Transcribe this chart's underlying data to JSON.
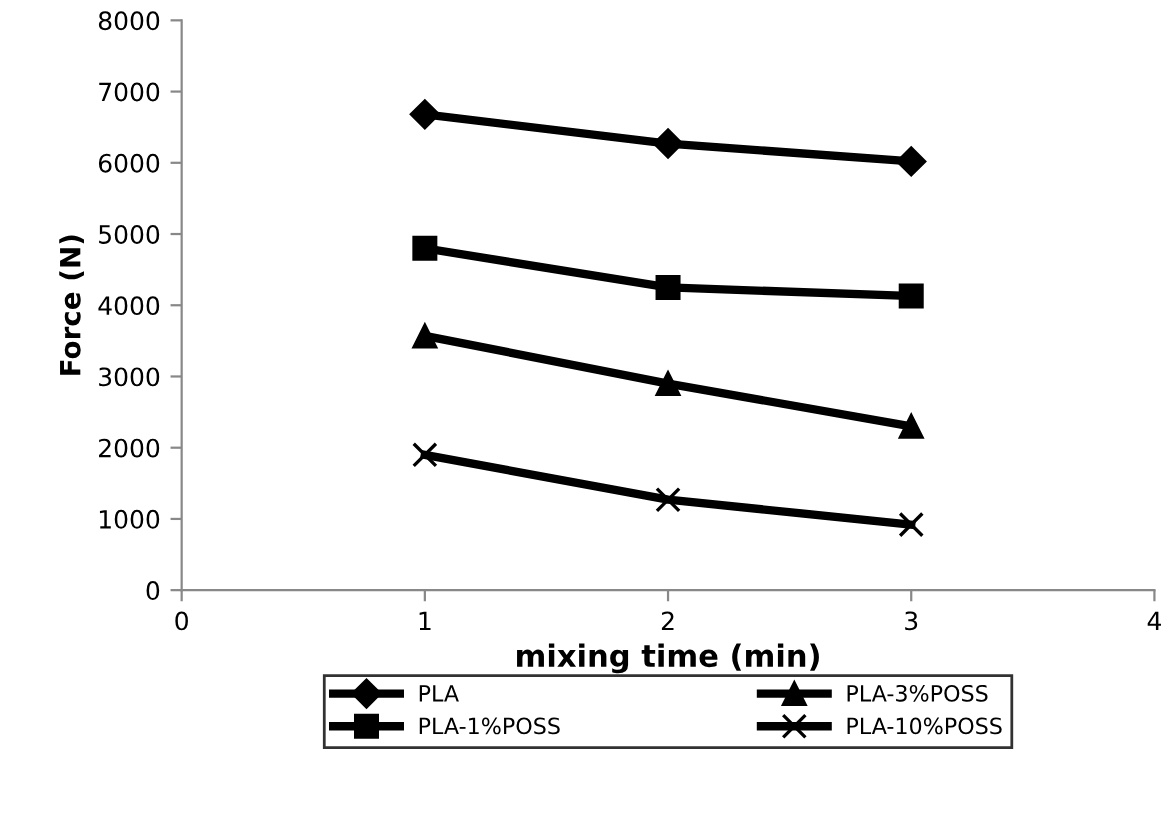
{
  "chart_data": {
    "type": "line",
    "xlabel": "mixing time (min)",
    "ylabel": "Force (N)",
    "x": [
      1,
      2,
      3
    ],
    "xlim": [
      0,
      4
    ],
    "xticks": [
      0,
      1,
      2,
      3,
      4
    ],
    "ylim": [
      0,
      8000
    ],
    "yticks": [
      0,
      1000,
      2000,
      3000,
      4000,
      5000,
      6000,
      7000,
      8000
    ],
    "grid": false,
    "legend": "bottom",
    "line_style": "solid",
    "series": [
      {
        "name": "PLA",
        "color": "#000000",
        "marker": "diamond",
        "values": [
          6680,
          6270,
          6020
        ]
      },
      {
        "name": "PLA-1%POSS",
        "color": "#000000",
        "marker": "square",
        "values": [
          4800,
          4250,
          4130
        ]
      },
      {
        "name": "PLA-3%POSS",
        "color": "#000000",
        "marker": "triangle",
        "values": [
          3570,
          2900,
          2300
        ]
      },
      {
        "name": "PLA-10%POSS",
        "color": "#000000",
        "marker": "cross",
        "values": [
          1900,
          1270,
          920
        ]
      }
    ]
  }
}
